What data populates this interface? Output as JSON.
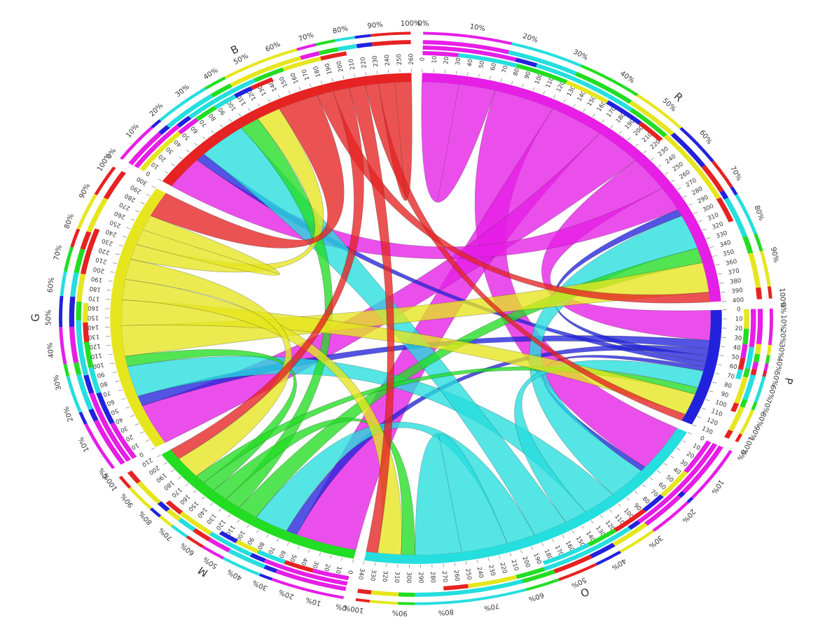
{
  "chart_data": {
    "type": "chord",
    "title": "",
    "sectors": [
      {
        "name": "R",
        "color": "#e61ee6",
        "total": 400,
        "tick_step": 10
      },
      {
        "name": "P",
        "color": "#2222dd",
        "total": 130,
        "tick_step": 10
      },
      {
        "name": "O",
        "color": "#25dede",
        "total": 340,
        "tick_step": 10
      },
      {
        "name": "M",
        "color": "#22dd22",
        "total": 210,
        "tick_step": 10
      },
      {
        "name": "G",
        "color": "#e6e61e",
        "total": 300,
        "tick_step": 10
      },
      {
        "name": "B",
        "color": "#e62222",
        "total": 260,
        "tick_step": 10
      }
    ],
    "percent_ticks": [
      "0%",
      "10%",
      "20%",
      "30%",
      "40%",
      "50%",
      "60%",
      "70%",
      "80%",
      "90%",
      "100%"
    ],
    "flows": [
      {
        "from": "R",
        "to": "R",
        "value": 30
      },
      {
        "from": "R",
        "to": "O",
        "value": 50
      },
      {
        "from": "R",
        "to": "M",
        "value": 45
      },
      {
        "from": "R",
        "to": "G",
        "value": 40
      },
      {
        "from": "R",
        "to": "P",
        "value": 35
      },
      {
        "from": "R",
        "to": "B",
        "value": 25
      },
      {
        "from": "P",
        "to": "G",
        "value": 10
      },
      {
        "from": "P",
        "to": "M",
        "value": 8
      },
      {
        "from": "P",
        "to": "R",
        "value": 7
      },
      {
        "from": "P",
        "to": "B",
        "value": 6
      },
      {
        "from": "P",
        "to": "O",
        "value": 5
      },
      {
        "from": "O",
        "to": "R",
        "value": 35
      },
      {
        "from": "O",
        "to": "G",
        "value": 30
      },
      {
        "from": "O",
        "to": "P",
        "value": 20
      },
      {
        "from": "O",
        "to": "B",
        "value": 30
      },
      {
        "from": "O",
        "to": "M",
        "value": 25
      },
      {
        "from": "O",
        "to": "O",
        "value": 40
      },
      {
        "from": "M",
        "to": "R",
        "value": 15
      },
      {
        "from": "M",
        "to": "B",
        "value": 12
      },
      {
        "from": "M",
        "to": "O",
        "value": 12
      },
      {
        "from": "M",
        "to": "G",
        "value": 10
      },
      {
        "from": "M",
        "to": "P",
        "value": 8
      },
      {
        "from": "G",
        "to": "R",
        "value": 30
      },
      {
        "from": "G",
        "to": "P",
        "value": 25
      },
      {
        "from": "G",
        "to": "O",
        "value": 20
      },
      {
        "from": "G",
        "to": "M",
        "value": 20
      },
      {
        "from": "G",
        "to": "B",
        "value": 15
      },
      {
        "from": "G",
        "to": "G",
        "value": 15
      },
      {
        "from": "B",
        "to": "G",
        "value": 25
      },
      {
        "from": "B",
        "to": "R",
        "value": 10
      },
      {
        "from": "B",
        "to": "M",
        "value": 10
      },
      {
        "from": "B",
        "to": "O",
        "value": 10
      },
      {
        "from": "B",
        "to": "P",
        "value": 8
      },
      {
        "from": "B",
        "to": "B",
        "value": 10
      }
    ]
  }
}
